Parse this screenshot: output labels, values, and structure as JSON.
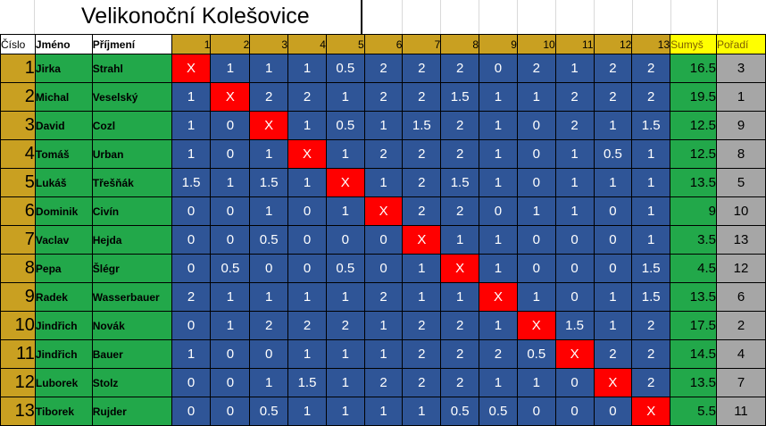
{
  "title": "Velikonoční Kolešovice",
  "headers": {
    "cislo": "Číslo",
    "jmeno": "Jméno",
    "prijmeni": "Příjmení",
    "cols": [
      "1",
      "2",
      "3",
      "4",
      "5",
      "6",
      "7",
      "8",
      "9",
      "10",
      "11",
      "12",
      "13"
    ],
    "sum": "Sumyš",
    "poradi": "Pořadí"
  },
  "rows": [
    {
      "n": "1",
      "jmeno": "Jirka",
      "prijmeni": "Strahl",
      "res": [
        "X",
        "1",
        "1",
        "1",
        "0.5",
        "2",
        "2",
        "2",
        "0",
        "2",
        "1",
        "2",
        "2"
      ],
      "sum": "16.5",
      "por": "3"
    },
    {
      "n": "2",
      "jmeno": "Michal",
      "prijmeni": "Veselský",
      "res": [
        "1",
        "X",
        "2",
        "2",
        "1",
        "2",
        "2",
        "1.5",
        "1",
        "1",
        "2",
        "2",
        "2"
      ],
      "sum": "19.5",
      "por": "1"
    },
    {
      "n": "3",
      "jmeno": "David",
      "prijmeni": "Cozl",
      "res": [
        "1",
        "0",
        "X",
        "1",
        "0.5",
        "1",
        "1.5",
        "2",
        "1",
        "0",
        "2",
        "1",
        "1.5"
      ],
      "sum": "12.5",
      "por": "9"
    },
    {
      "n": "4",
      "jmeno": "Tomáš",
      "prijmeni": "Urban",
      "res": [
        "1",
        "0",
        "1",
        "X",
        "1",
        "2",
        "2",
        "2",
        "1",
        "0",
        "1",
        "0.5",
        "1"
      ],
      "sum": "12.5",
      "por": "8"
    },
    {
      "n": "5",
      "jmeno": "Lukáš",
      "prijmeni": "Třešňák",
      "res": [
        "1.5",
        "1",
        "1.5",
        "1",
        "X",
        "1",
        "2",
        "1.5",
        "1",
        "0",
        "1",
        "1",
        "1"
      ],
      "sum": "13.5",
      "por": "5"
    },
    {
      "n": "6",
      "jmeno": "Dominik",
      "prijmeni": "Civín",
      "res": [
        "0",
        "0",
        "1",
        "0",
        "1",
        "X",
        "2",
        "2",
        "0",
        "1",
        "1",
        "0",
        "1"
      ],
      "sum": "9",
      "por": "10"
    },
    {
      "n": "7",
      "jmeno": "Vaclav",
      "prijmeni": "Hejda",
      "res": [
        "0",
        "0",
        "0.5",
        "0",
        "0",
        "0",
        "X",
        "1",
        "1",
        "0",
        "0",
        "0",
        "1"
      ],
      "sum": "3.5",
      "por": "13"
    },
    {
      "n": "8",
      "jmeno": "Pepa",
      "prijmeni": "Šlégr",
      "res": [
        "0",
        "0.5",
        "0",
        "0",
        "0.5",
        "0",
        "1",
        "X",
        "1",
        "0",
        "0",
        "0",
        "1.5"
      ],
      "sum": "4.5",
      "por": "12"
    },
    {
      "n": "9",
      "jmeno": "Radek",
      "prijmeni": "Wasserbauer",
      "res": [
        "2",
        "1",
        "1",
        "1",
        "1",
        "2",
        "1",
        "1",
        "X",
        "1",
        "0",
        "1",
        "1.5"
      ],
      "sum": "13.5",
      "por": "6"
    },
    {
      "n": "10",
      "jmeno": "Jindřich",
      "prijmeni": "Novák",
      "res": [
        "0",
        "1",
        "2",
        "2",
        "2",
        "1",
        "2",
        "2",
        "1",
        "X",
        "1.5",
        "1",
        "2"
      ],
      "sum": "17.5",
      "por": "2"
    },
    {
      "n": "11",
      "jmeno": "Jindřich",
      "prijmeni": "Bauer",
      "res": [
        "1",
        "0",
        "0",
        "1",
        "1",
        "1",
        "2",
        "2",
        "2",
        "0.5",
        "X",
        "2",
        "2"
      ],
      "sum": "14.5",
      "por": "4"
    },
    {
      "n": "12",
      "jmeno": "Luborek",
      "prijmeni": "Stolz",
      "res": [
        "0",
        "0",
        "1",
        "1.5",
        "1",
        "2",
        "2",
        "2",
        "1",
        "1",
        "0",
        "X",
        "2"
      ],
      "sum": "13.5",
      "por": "7"
    },
    {
      "n": "13",
      "jmeno": "Tiborek",
      "prijmeni": "Rujder",
      "res": [
        "0",
        "0",
        "0.5",
        "1",
        "1",
        "1",
        "1",
        "0.5",
        "0.5",
        "0",
        "0",
        "0",
        "X"
      ],
      "sum": "5.5",
      "por": "11"
    }
  ]
}
